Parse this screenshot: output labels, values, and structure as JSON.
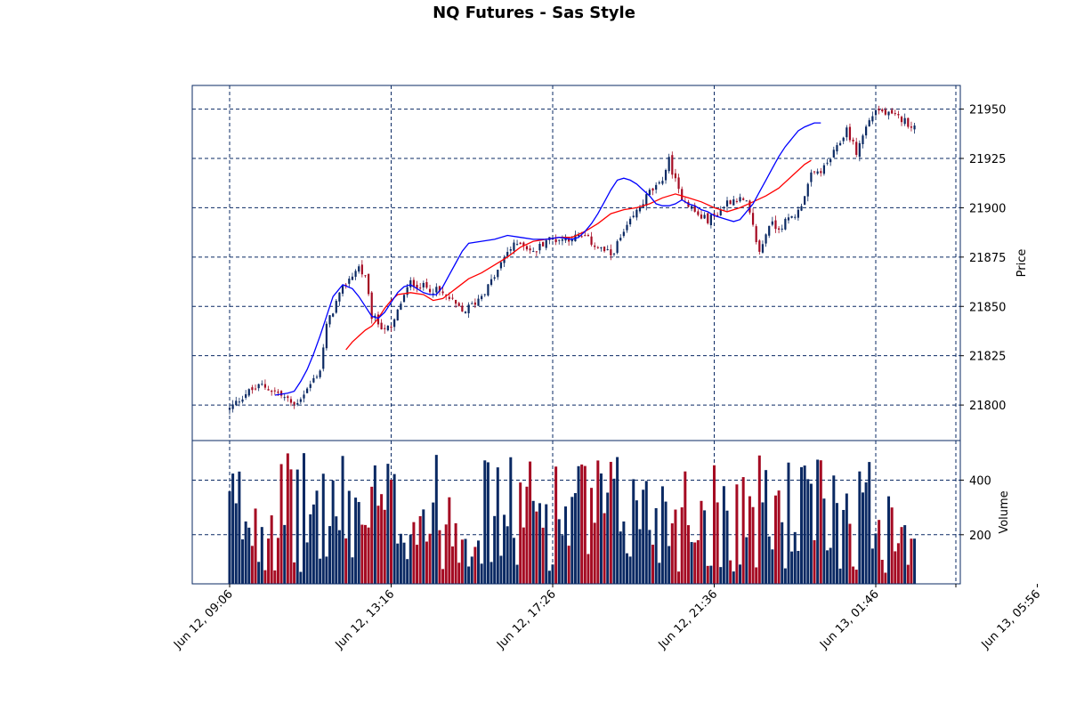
{
  "title": "NQ Futures - Sas Style",
  "colors": {
    "frame": "#0a2963",
    "grid": "#0a2963",
    "up": "#0a2963",
    "down": "#a50a22",
    "ma_fast": "#0000ff",
    "ma_slow": "#ff0000"
  },
  "chart_data": {
    "type": "candlestick",
    "title": "NQ Futures - Sas Style",
    "interval_minutes": 5,
    "x_tick_labels": [
      "Jun 12, 09:06",
      "Jun 12, 13:16",
      "Jun 12, 17:26",
      "Jun 12, 21:36",
      "Jun 13, 01:46",
      "Jun 13, 05:56"
    ],
    "price_panel": {
      "ylabel": "Price",
      "ylim": [
        21782,
        21962
      ],
      "yticks": [
        21800,
        21825,
        21850,
        21875,
        21900,
        21925,
        21950
      ],
      "grid": true
    },
    "volume_panel": {
      "ylabel": "Volume",
      "ylim": [
        20,
        545
      ],
      "yticks": [
        200,
        400
      ],
      "grid": true
    },
    "close_anchors": [
      [
        0,
        21798
      ],
      [
        5,
        21806
      ],
      [
        10,
        21810
      ],
      [
        15,
        21806
      ],
      [
        20,
        21800
      ],
      [
        24,
        21808
      ],
      [
        28,
        21818
      ],
      [
        30,
        21840
      ],
      [
        33,
        21852
      ],
      [
        36,
        21862
      ],
      [
        40,
        21870
      ],
      [
        42,
        21864
      ],
      [
        44,
        21845
      ],
      [
        47,
        21840
      ],
      [
        50,
        21838
      ],
      [
        53,
        21852
      ],
      [
        56,
        21862
      ],
      [
        60,
        21860
      ],
      [
        64,
        21858
      ],
      [
        68,
        21854
      ],
      [
        72,
        21847
      ],
      [
        76,
        21852
      ],
      [
        80,
        21860
      ],
      [
        83,
        21868
      ],
      [
        86,
        21878
      ],
      [
        90,
        21883
      ],
      [
        94,
        21877
      ],
      [
        98,
        21884
      ],
      [
        102,
        21884
      ],
      [
        106,
        21885
      ],
      [
        110,
        21885
      ],
      [
        114,
        21880
      ],
      [
        118,
        21876
      ],
      [
        122,
        21887
      ],
      [
        126,
        21898
      ],
      [
        130,
        21908
      ],
      [
        133,
        21911
      ],
      [
        136,
        21924
      ],
      [
        139,
        21908
      ],
      [
        142,
        21902
      ],
      [
        145,
        21896
      ],
      [
        148,
        21894
      ],
      [
        151,
        21897
      ],
      [
        154,
        21903
      ],
      [
        157,
        21905
      ],
      [
        160,
        21902
      ],
      [
        162,
        21890
      ],
      [
        164,
        21877
      ],
      [
        167,
        21892
      ],
      [
        170,
        21890
      ],
      [
        173,
        21894
      ],
      [
        176,
        21898
      ],
      [
        180,
        21916
      ],
      [
        184,
        21920
      ],
      [
        188,
        21930
      ],
      [
        191,
        21940
      ],
      [
        194,
        21928
      ],
      [
        197,
        21941
      ],
      [
        200,
        21950
      ],
      [
        204,
        21947
      ],
      [
        208,
        21945
      ],
      [
        212,
        21941
      ]
    ],
    "ma_fast": {
      "period": 10,
      "points": [
        [
          14,
          21805
        ],
        [
          18,
          21806
        ],
        [
          20,
          21807
        ],
        [
          22,
          21812
        ],
        [
          24,
          21818
        ],
        [
          26,
          21826
        ],
        [
          28,
          21835
        ],
        [
          30,
          21845
        ],
        [
          32,
          21855
        ],
        [
          35,
          21861
        ],
        [
          38,
          21859
        ],
        [
          40,
          21855
        ],
        [
          42,
          21850
        ],
        [
          44,
          21845
        ],
        [
          46,
          21844
        ],
        [
          48,
          21847
        ],
        [
          50,
          21852
        ],
        [
          52,
          21857
        ],
        [
          54,
          21860
        ],
        [
          56,
          21861
        ],
        [
          58,
          21859
        ],
        [
          60,
          21857
        ],
        [
          62,
          21856
        ],
        [
          64,
          21856
        ],
        [
          66,
          21860
        ],
        [
          68,
          21866
        ],
        [
          70,
          21872
        ],
        [
          72,
          21878
        ],
        [
          74,
          21882
        ],
        [
          78,
          21883
        ],
        [
          82,
          21884
        ],
        [
          86,
          21886
        ],
        [
          90,
          21885
        ],
        [
          94,
          21884
        ],
        [
          98,
          21884
        ],
        [
          102,
          21885
        ],
        [
          106,
          21884
        ],
        [
          108,
          21885
        ],
        [
          110,
          21888
        ],
        [
          112,
          21892
        ],
        [
          114,
          21897
        ],
        [
          116,
          21903
        ],
        [
          118,
          21909
        ],
        [
          120,
          21914
        ],
        [
          122,
          21915
        ],
        [
          124,
          21914
        ],
        [
          126,
          21912
        ],
        [
          128,
          21909
        ],
        [
          130,
          21906
        ],
        [
          132,
          21902
        ],
        [
          134,
          21901
        ],
        [
          136,
          21901
        ],
        [
          138,
          21902
        ],
        [
          140,
          21904
        ],
        [
          142,
          21902
        ],
        [
          144,
          21901
        ],
        [
          146,
          21899
        ],
        [
          148,
          21898
        ],
        [
          150,
          21896
        ],
        [
          152,
          21895
        ],
        [
          154,
          21894
        ],
        [
          156,
          21893
        ],
        [
          158,
          21894
        ],
        [
          160,
          21898
        ],
        [
          162,
          21902
        ],
        [
          164,
          21908
        ],
        [
          166,
          21914
        ],
        [
          168,
          21920
        ],
        [
          170,
          21926
        ],
        [
          172,
          21931
        ],
        [
          174,
          21935
        ],
        [
          176,
          21939
        ],
        [
          178,
          21941
        ],
        [
          181,
          21943
        ],
        [
          183,
          21943
        ]
      ]
    },
    "ma_slow": {
      "period": 30,
      "points": [
        [
          36,
          21828
        ],
        [
          38,
          21832
        ],
        [
          40,
          21835
        ],
        [
          42,
          21838
        ],
        [
          44,
          21840
        ],
        [
          46,
          21844
        ],
        [
          48,
          21849
        ],
        [
          50,
          21853
        ],
        [
          52,
          21856
        ],
        [
          56,
          21857
        ],
        [
          60,
          21856
        ],
        [
          63,
          21853
        ],
        [
          66,
          21854
        ],
        [
          70,
          21859
        ],
        [
          74,
          21864
        ],
        [
          78,
          21867
        ],
        [
          82,
          21871
        ],
        [
          86,
          21875
        ],
        [
          90,
          21880
        ],
        [
          94,
          21883
        ],
        [
          98,
          21884
        ],
        [
          102,
          21885
        ],
        [
          106,
          21885
        ],
        [
          110,
          21888
        ],
        [
          114,
          21892
        ],
        [
          118,
          21897
        ],
        [
          122,
          21899
        ],
        [
          126,
          21900
        ],
        [
          130,
          21902
        ],
        [
          134,
          21905
        ],
        [
          138,
          21907
        ],
        [
          142,
          21905
        ],
        [
          146,
          21903
        ],
        [
          150,
          21900
        ],
        [
          154,
          21898
        ],
        [
          158,
          21900
        ],
        [
          162,
          21903
        ],
        [
          166,
          21906
        ],
        [
          170,
          21910
        ],
        [
          174,
          21916
        ],
        [
          178,
          21922
        ],
        [
          180,
          21924
        ]
      ]
    }
  }
}
